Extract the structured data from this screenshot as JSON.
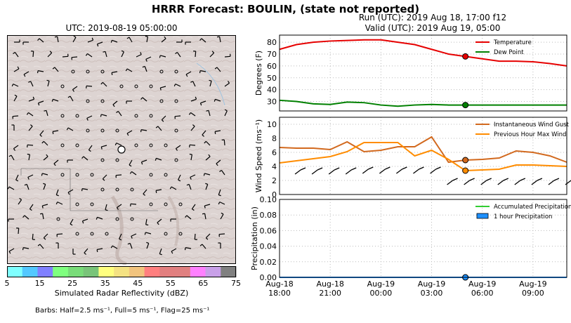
{
  "title": "HRRR Forecast: BOULIN, (state not reported)",
  "run_label": "Run (UTC): 2019 Aug 18, 17:00 f12",
  "valid_label": "Valid (UTC): 2019 Aug 19, 05:00",
  "map": {
    "title": "UTC: 2019-08-19 05:00:00",
    "colorbar_label": "Simulated Radar Reflectivity (dBZ)",
    "colorbar_ticks": [
      "5",
      "15",
      "25",
      "35",
      "45",
      "55",
      "65",
      "75"
    ],
    "colorbar_colors": [
      "#7fffff",
      "#53c8ff",
      "#8080ff",
      "#7fff7f",
      "#79dc79",
      "#79c479",
      "#ffff7f",
      "#f4e282",
      "#f2c47e",
      "#ff7f7f",
      "#e27f7f",
      "#e08080",
      "#ff80ff",
      "#c8a0e8",
      "#808080"
    ],
    "barbs_note": "Barbs: Half=2.5 ms⁻¹, Full=5 ms⁻¹, Flag=25 ms⁻¹"
  },
  "chart_data": [
    {
      "type": "line",
      "ylabel": "Degrees (F)",
      "ylim": [
        22,
        86
      ],
      "yticks": [
        30,
        40,
        50,
        60,
        70,
        80
      ],
      "grid": true,
      "legend_position": "top-right",
      "x": [
        0,
        1,
        2,
        3,
        4,
        5,
        6,
        7,
        8,
        9,
        10,
        11,
        12,
        13,
        14,
        15,
        16,
        17
      ],
      "series": [
        {
          "name": "Temperature",
          "color": "#e60000",
          "values": [
            74,
            78,
            80,
            81,
            81.5,
            82,
            82,
            80,
            78,
            74,
            70,
            68,
            66,
            64,
            64,
            63.5,
            62,
            60
          ]
        },
        {
          "name": "Dew Point",
          "color": "#008000",
          "values": [
            31,
            30,
            28,
            27.5,
            29.5,
            29,
            27,
            26,
            27,
            27.5,
            27,
            27,
            27,
            27,
            27,
            27,
            27,
            27
          ]
        }
      ],
      "current_index": 11
    },
    {
      "type": "line",
      "ylabel": "Wind Speed  (ms⁻¹)",
      "ylim": [
        0,
        11
      ],
      "yticks": [
        0,
        2,
        4,
        6,
        8,
        10
      ],
      "grid": true,
      "legend_position": "top-right",
      "x": [
        0,
        1,
        2,
        3,
        4,
        5,
        6,
        7,
        8,
        9,
        10,
        11,
        12,
        13,
        14,
        15,
        16,
        17
      ],
      "series": [
        {
          "name": "Instantaneous Wind Gust",
          "color": "#d2691e",
          "values": [
            6.7,
            6.6,
            6.6,
            6.4,
            7.5,
            6.1,
            6.3,
            6.8,
            6.8,
            8.2,
            4.6,
            4.9,
            5.0,
            5.2,
            6.2,
            6.0,
            5.5,
            4.6
          ]
        },
        {
          "name": "Previous Hour Max Wind",
          "color": "#ff8c00",
          "values": [
            4.5,
            4.8,
            5.1,
            5.4,
            6.1,
            7.4,
            7.4,
            7.4,
            5.5,
            6.3,
            5.0,
            3.4,
            3.5,
            3.6,
            4.2,
            4.2,
            4.1,
            4.0
          ]
        }
      ],
      "current_index": 11
    },
    {
      "type": "line",
      "ylabel": "Precipitation (in)",
      "ylim": [
        0,
        0.1
      ],
      "yticks": [
        "0.00",
        "0.02",
        "0.04",
        "0.06",
        "0.08",
        "0.10"
      ],
      "grid": true,
      "legend_position": "top-right",
      "x": [
        0,
        1,
        2,
        3,
        4,
        5,
        6,
        7,
        8,
        9,
        10,
        11,
        12,
        13,
        14,
        15,
        16,
        17
      ],
      "series": [
        {
          "name": "Accumulated Precipitation",
          "color": "#32cd32",
          "values": [
            0,
            0,
            0,
            0,
            0,
            0,
            0,
            0,
            0,
            0,
            0,
            0,
            0,
            0,
            0,
            0,
            0,
            0
          ]
        },
        {
          "name": "1 hour Precipitation",
          "color": "#1e90ff",
          "values": [
            0,
            0,
            0,
            0,
            0,
            0,
            0,
            0,
            0,
            0,
            0,
            0,
            0,
            0,
            0,
            0,
            0,
            0
          ]
        }
      ],
      "current_index": 11
    }
  ],
  "xticks": [
    {
      "i": 0,
      "l1": "Aug-18",
      "l2": "18:00"
    },
    {
      "i": 3,
      "l1": "Aug-18",
      "l2": "21:00"
    },
    {
      "i": 6,
      "l1": "Aug-19",
      "l2": "00:00"
    },
    {
      "i": 9,
      "l1": "Aug-19",
      "l2": "03:00"
    },
    {
      "i": 12,
      "l1": "Aug-19",
      "l2": "06:00"
    },
    {
      "i": 15,
      "l1": "Aug-19",
      "l2": "09:00"
    }
  ]
}
